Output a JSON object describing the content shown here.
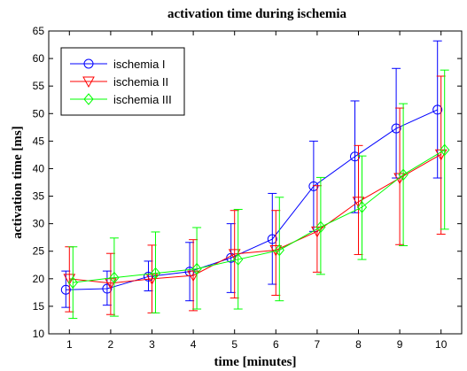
{
  "chart_data": {
    "type": "line",
    "title": "activation time during ischemia",
    "xlabel": "time [minutes]",
    "ylabel": "activation time [ms]",
    "x": [
      1,
      2,
      3,
      4,
      5,
      6,
      7,
      8,
      9,
      10
    ],
    "xlim": [
      0.5,
      10.5
    ],
    "ylim": [
      10,
      65
    ],
    "xticks": [
      1,
      2,
      3,
      4,
      5,
      6,
      7,
      8,
      9,
      10
    ],
    "yticks": [
      10,
      15,
      20,
      25,
      30,
      35,
      40,
      45,
      50,
      55,
      60,
      65
    ],
    "grid": false,
    "legend_position": "top-left",
    "error_bars": true,
    "series": [
      {
        "name": "ischemia I",
        "color": "#0000ff",
        "marker": "circle",
        "values": [
          18.0,
          18.2,
          20.4,
          21.3,
          23.8,
          27.2,
          36.8,
          42.2,
          47.3,
          50.7
        ],
        "lower": [
          14.8,
          15.2,
          17.8,
          16.0,
          17.5,
          19.0,
          28.6,
          32.0,
          38.3,
          38.3
        ],
        "upper": [
          21.4,
          21.4,
          23.2,
          26.6,
          30.0,
          35.5,
          45.0,
          52.3,
          58.2,
          63.2
        ]
      },
      {
        "name": "ischemia II",
        "color": "#ff0000",
        "marker": "triangle-down",
        "values": [
          20.0,
          19.2,
          20.0,
          20.6,
          24.5,
          25.2,
          28.6,
          34.0,
          38.3,
          42.6
        ],
        "lower": [
          14.0,
          13.5,
          13.8,
          14.2,
          16.5,
          17.0,
          21.2,
          24.4,
          26.2,
          28.1
        ],
        "upper": [
          25.8,
          24.6,
          26.1,
          27.1,
          32.4,
          32.4,
          36.9,
          44.2,
          51.0,
          56.8
        ]
      },
      {
        "name": "ischemia III",
        "color": "#00ff00",
        "marker": "diamond",
        "values": [
          19.3,
          20.2,
          21.0,
          21.8,
          23.5,
          25.2,
          29.4,
          33.0,
          38.9,
          43.4
        ],
        "lower": [
          12.8,
          13.2,
          13.8,
          14.5,
          14.5,
          16.0,
          20.8,
          23.5,
          26.0,
          29.0
        ],
        "upper": [
          25.8,
          27.4,
          28.5,
          29.3,
          32.6,
          34.8,
          38.4,
          42.3,
          51.8,
          57.9
        ]
      }
    ]
  }
}
